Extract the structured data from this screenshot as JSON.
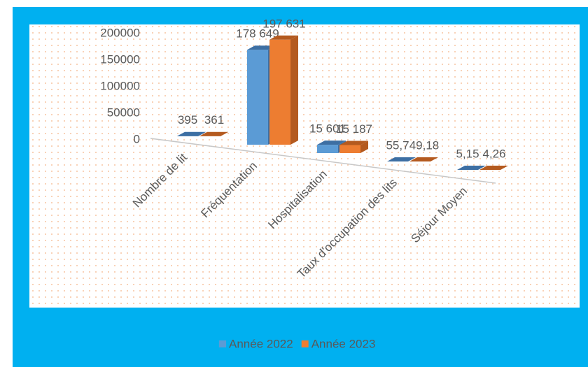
{
  "chart_data": {
    "type": "bar3d",
    "categories": [
      "Nombre de lit",
      "Fréquentation",
      "Hospitalisation",
      "Taux d'occupation des lits",
      "Séjour Moyen"
    ],
    "series": [
      {
        "name": "Année 2022",
        "color": "#5b9bd5",
        "values": [
          395,
          178649,
          15601,
          55.7,
          5.15
        ],
        "value_labels": [
          "395",
          "178 649",
          "15 601",
          "55,7",
          "5,15"
        ]
      },
      {
        "name": "Année 2023",
        "color": "#ed7d31",
        "values": [
          361,
          197631,
          15187,
          49.18,
          4.26
        ],
        "value_labels": [
          "361",
          "197 631",
          "15 187",
          "49,18",
          "4,26"
        ]
      }
    ],
    "ylim": [
      0,
      200000
    ],
    "yticks": [
      0,
      50000,
      100000,
      150000,
      200000
    ],
    "legend": "bottom"
  }
}
